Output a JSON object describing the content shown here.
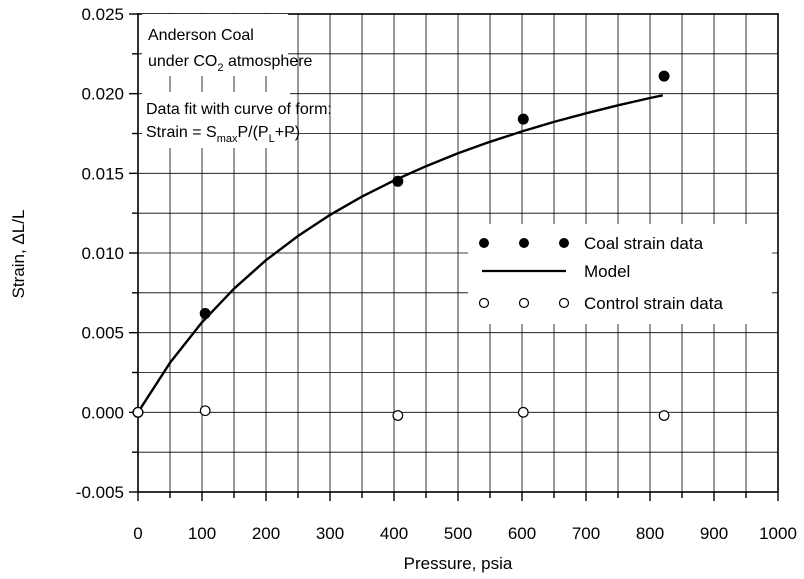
{
  "chart_data": {
    "type": "scatter",
    "title": "",
    "xlabel": "Pressure, psia",
    "ylabel": "Strain, ΔL/L",
    "xlim": [
      0,
      1000
    ],
    "ylim": [
      -0.005,
      0.025
    ],
    "x_ticks": [
      "0",
      "100",
      "200",
      "300",
      "400",
      "500",
      "600",
      "700",
      "800",
      "900",
      "1000"
    ],
    "y_ticks": [
      "-0.005",
      "0.000",
      "0.005",
      "0.010",
      "0.015",
      "0.020",
      "0.025"
    ],
    "grid": true,
    "legend_placement": "center-right",
    "annotations": {
      "line1": "Anderson Coal",
      "line2_prefix": "under CO",
      "line2_sub": "2",
      "line2_suffix": " atmosphere",
      "fit_line1": "Data fit with curve of form:",
      "fit_prefix": "Strain = S",
      "fit_sub1": "max",
      "fit_mid": "P/(P",
      "fit_sub2": "L",
      "fit_suffix": "+P)"
    },
    "series": [
      {
        "name": "Coal strain data",
        "marker": "filled-circle",
        "color": "#000000",
        "x": [
          0,
          105,
          406,
          602,
          822
        ],
        "y": [
          0.0,
          0.0062,
          0.0145,
          0.0184,
          0.0211
        ]
      },
      {
        "name": "Model",
        "marker": "line",
        "color": "#000000",
        "x": [
          0,
          50,
          100,
          150,
          200,
          250,
          300,
          350,
          400,
          450,
          500,
          550,
          600,
          650,
          700,
          750,
          800,
          820
        ],
        "y": [
          0.0,
          0.00311,
          0.00565,
          0.00776,
          0.00955,
          0.01107,
          0.01239,
          0.01354,
          0.01455,
          0.01545,
          0.01626,
          0.01698,
          0.01763,
          0.01823,
          0.01877,
          0.01927,
          0.01973,
          0.0199
        ]
      },
      {
        "name": "Control strain data",
        "marker": "open-circle",
        "color": "#000000",
        "x": [
          0,
          105,
          406,
          602,
          822
        ],
        "y": [
          0.0,
          0.0001,
          -0.0002,
          0.0,
          -0.0002
        ]
      }
    ]
  }
}
